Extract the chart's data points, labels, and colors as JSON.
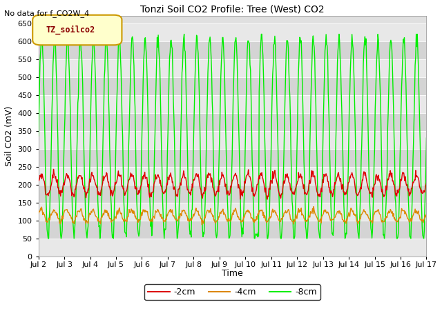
{
  "title": "Tonzi Soil CO2 Profile: Tree (West) CO2",
  "ylabel": "Soil CO2 (mV)",
  "xlabel": "Time",
  "top_left_text": "No data for f_CO2W_4",
  "legend_box_text": "TZ_soilco2",
  "legend_box_color": "#ffffcc",
  "legend_box_edge": "#cc9900",
  "ylim": [
    0,
    670
  ],
  "yticks": [
    0,
    50,
    100,
    150,
    200,
    250,
    300,
    350,
    400,
    450,
    500,
    550,
    600,
    650
  ],
  "background_color": "#ffffff",
  "plot_bg_color": "#ffffff",
  "stripe_colors": [
    "#e8e8e8",
    "#d8d8d8"
  ],
  "line_colors": {
    "neg2cm": "#dd0000",
    "neg4cm": "#dd8800",
    "neg8cm": "#00ee00"
  },
  "legend_labels": [
    "-2cm",
    "-4cm",
    "-8cm"
  ],
  "xstart_day": 2,
  "xend_day": 17,
  "num_points": 720
}
